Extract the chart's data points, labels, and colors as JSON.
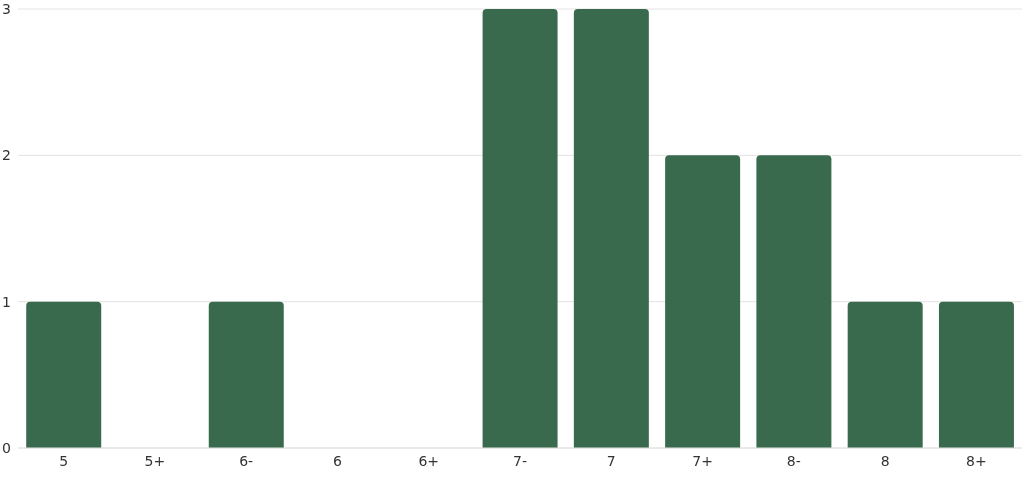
{
  "chart_data": {
    "type": "bar",
    "categories": [
      "5",
      "5+",
      "6-",
      "6",
      "6+",
      "7-",
      "7",
      "7+",
      "8-",
      "8",
      "8+"
    ],
    "values": [
      1,
      0,
      1,
      0,
      0,
      3,
      3,
      2,
      2,
      1,
      1
    ],
    "color": "#3a6a4d",
    "ylim": [
      0,
      3
    ],
    "yticks": [
      0,
      1,
      2,
      3
    ],
    "grid": "y"
  }
}
